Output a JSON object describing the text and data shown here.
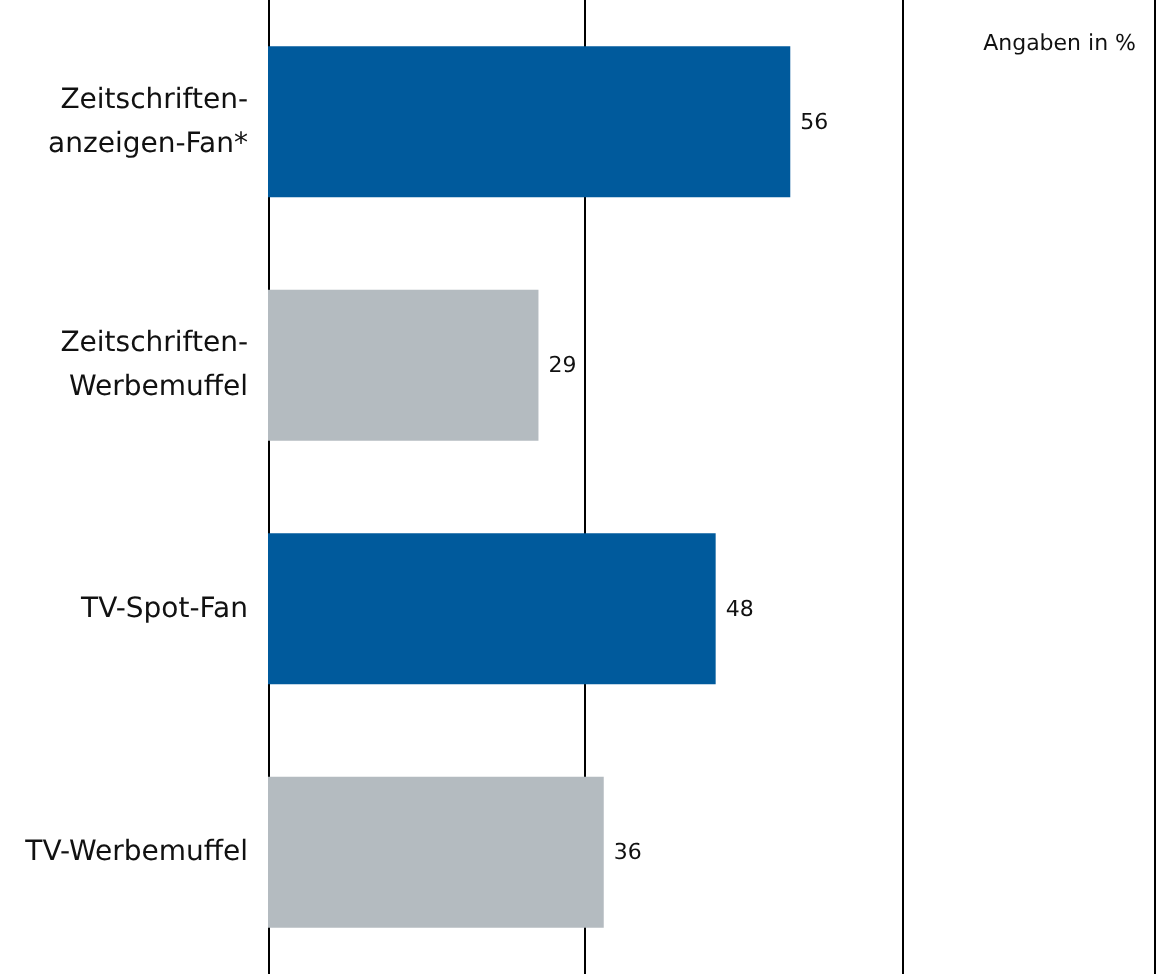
{
  "chart_data": {
    "type": "bar",
    "orientation": "horizontal",
    "categories": [
      "Zeitschriften-anzeigen-Fan*",
      "Zeitschriften-Werbemuffel",
      "TV-Spot-Fan",
      "TV-Werbemuffel"
    ],
    "values": [
      56,
      29,
      48,
      36
    ],
    "colors": [
      "#005a9c",
      "#b4bbc0",
      "#005a9c",
      "#b4bbc0"
    ],
    "xlim": [
      0,
      95
    ],
    "xticks": [
      {
        "value": 0,
        "label": null
      },
      {
        "value": 34,
        "label": null
      },
      {
        "value": 68,
        "label": null
      }
    ],
    "tick_labels": "y",
    "grid": "x",
    "data_labels": true,
    "annotations": [
      "Angaben in %"
    ]
  }
}
